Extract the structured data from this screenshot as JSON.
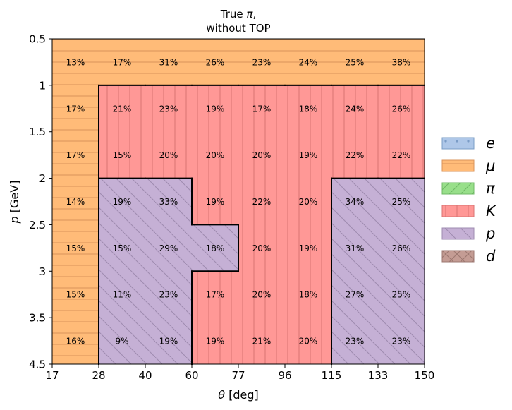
{
  "chart_data": {
    "type": "heatmap",
    "title_lines": [
      "True π,",
      "without TOP"
    ],
    "xlabel_symbol": "θ",
    "xlabel_unit": " [deg]",
    "ylabel_symbol": "p",
    "ylabel_unit": " [GeV]",
    "x_edges": [
      17,
      28,
      40,
      60,
      77,
      96,
      115,
      133,
      150
    ],
    "x_tick_labels": [
      "17",
      "28",
      "40",
      "60",
      "77",
      "96",
      "115",
      "133",
      "150"
    ],
    "y_edges": [
      0.5,
      1,
      1.5,
      2,
      2.5,
      3,
      3.5,
      4.5
    ],
    "y_tick_labels": [
      "0.5",
      "1",
      "1.5",
      "2",
      "2.5",
      "3",
      "3.5",
      "4.5"
    ],
    "cell_labels": [
      [
        "13%",
        "17%",
        "31%",
        "26%",
        "23%",
        "24%",
        "25%",
        "38%"
      ],
      [
        "17%",
        "21%",
        "23%",
        "19%",
        "17%",
        "18%",
        "24%",
        "26%"
      ],
      [
        "17%",
        "15%",
        "20%",
        "20%",
        "20%",
        "19%",
        "22%",
        "22%"
      ],
      [
        "14%",
        "19%",
        "33%",
        "19%",
        "22%",
        "20%",
        "34%",
        "25%"
      ],
      [
        "15%",
        "15%",
        "29%",
        "18%",
        "20%",
        "19%",
        "31%",
        "26%"
      ],
      [
        "15%",
        "11%",
        "23%",
        "17%",
        "20%",
        "18%",
        "27%",
        "25%"
      ],
      [
        "16%",
        "9%",
        "19%",
        "19%",
        "21%",
        "20%",
        "23%",
        "23%"
      ]
    ],
    "cell_species": [
      [
        "mu",
        "mu",
        "mu",
        "mu",
        "mu",
        "mu",
        "mu",
        "mu"
      ],
      [
        "mu",
        "K",
        "K",
        "K",
        "K",
        "K",
        "K",
        "K"
      ],
      [
        "mu",
        "K",
        "K",
        "K",
        "K",
        "K",
        "K",
        "K"
      ],
      [
        "mu",
        "p",
        "p",
        "K",
        "K",
        "K",
        "p",
        "p"
      ],
      [
        "mu",
        "p",
        "p",
        "p",
        "K",
        "K",
        "p",
        "p"
      ],
      [
        "mu",
        "p",
        "p",
        "K",
        "K",
        "K",
        "p",
        "p"
      ],
      [
        "mu",
        "p",
        "p",
        "K",
        "K",
        "K",
        "p",
        "p"
      ]
    ],
    "legend_position": "right",
    "legend": [
      {
        "key": "e",
        "label": "e",
        "color": "#aec7e8",
        "edge": "#7a9cc6",
        "hatch": "dots"
      },
      {
        "key": "mu",
        "label": "μ",
        "color": "#ffbb78",
        "edge": "#d9935a",
        "hatch": "horizontal"
      },
      {
        "key": "pi",
        "label": "π",
        "color": "#98df8a",
        "edge": "#6fb865",
        "hatch": "diagonal-up"
      },
      {
        "key": "K",
        "label": "K",
        "color": "#ff9896",
        "edge": "#d97373",
        "hatch": "vertical"
      },
      {
        "key": "p",
        "label": "p",
        "color": "#c5b0d5",
        "edge": "#9e8bb0",
        "hatch": "diagonal-down"
      },
      {
        "key": "d",
        "label": "d",
        "color": "#c49c94",
        "edge": "#9c7770",
        "hatch": "cross"
      }
    ]
  }
}
